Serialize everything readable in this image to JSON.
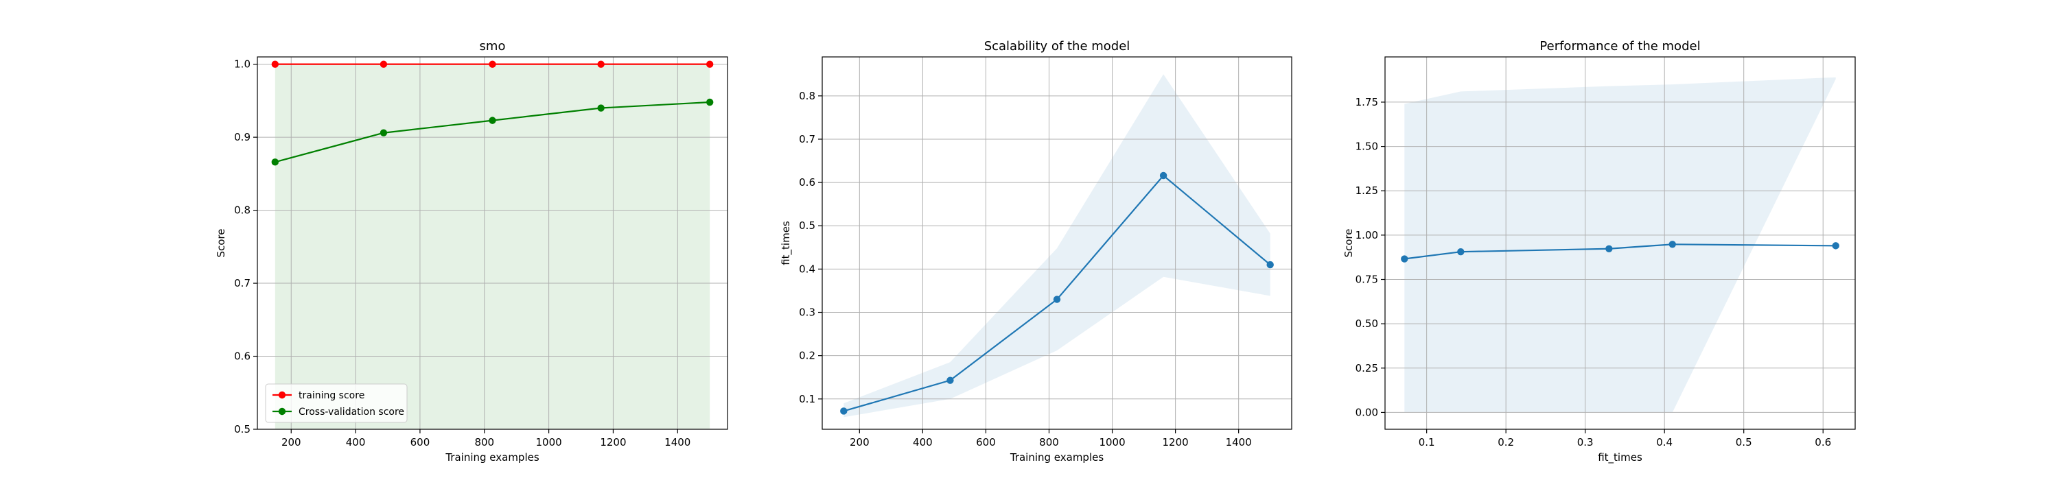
{
  "chart_data": [
    {
      "type": "line",
      "title": "smo",
      "xlabel": "Training examples",
      "ylabel": "Score",
      "xlim": [
        95,
        1555
      ],
      "ylim": [
        0.5,
        1.01
      ],
      "xticks": [
        200,
        400,
        600,
        800,
        1000,
        1200,
        1400
      ],
      "yticks": [
        0.5,
        0.6,
        0.7,
        0.8,
        0.9,
        1.0
      ],
      "grid": true,
      "legend_placement": "lower-left",
      "x": [
        150,
        487,
        825,
        1162,
        1500
      ],
      "series": [
        {
          "name": "training score",
          "color": "#ff0000",
          "values": [
            1.0,
            1.0,
            1.0,
            1.0,
            1.0
          ],
          "band_lower": [
            1.0,
            1.0,
            1.0,
            1.0,
            1.0
          ],
          "band_upper": [
            1.0,
            1.0,
            1.0,
            1.0,
            1.0
          ]
        },
        {
          "name": "Cross-validation score",
          "color": "#008000",
          "values": [
            0.866,
            0.906,
            0.923,
            0.94,
            0.948
          ],
          "band_lower": [
            0.48,
            0.48,
            0.48,
            0.48,
            0.48
          ],
          "band_upper": [
            1.0,
            1.0,
            1.0,
            1.0,
            1.0
          ],
          "band_color": "#008000"
        }
      ]
    },
    {
      "type": "line",
      "title": "Scalability of the model",
      "xlabel": "Training examples",
      "ylabel": "fit_times",
      "xlim": [
        82,
        1568
      ],
      "ylim": [
        0.03,
        0.89
      ],
      "xticks": [
        200,
        400,
        600,
        800,
        1000,
        1200,
        1400
      ],
      "yticks": [
        0.1,
        0.2,
        0.3,
        0.4,
        0.5,
        0.6,
        0.7,
        0.8
      ],
      "grid": true,
      "x": [
        150,
        487,
        825,
        1162,
        1500
      ],
      "series": [
        {
          "color": "#1f77b4",
          "values": [
            0.072,
            0.143,
            0.33,
            0.616,
            0.41
          ],
          "band_lower": [
            0.058,
            0.1,
            0.212,
            0.382,
            0.338
          ],
          "band_upper": [
            0.09,
            0.185,
            0.448,
            0.85,
            0.482
          ],
          "band_color": "#1f77b4"
        }
      ]
    },
    {
      "type": "line",
      "title": "Performance of the model",
      "xlabel": "fit_times",
      "ylabel": "Score",
      "xlim": [
        0.0475,
        0.6405
      ],
      "ylim": [
        -0.095,
        2.005
      ],
      "xticks": [
        0.1,
        0.2,
        0.3,
        0.4,
        0.5,
        0.6
      ],
      "yticks": [
        0.0,
        0.25,
        0.5,
        0.75,
        1.0,
        1.25,
        1.5,
        1.75
      ],
      "grid": true,
      "x": [
        0.072,
        0.143,
        0.33,
        0.41,
        0.616
      ],
      "series": [
        {
          "color": "#1f77b4",
          "values": [
            0.866,
            0.906,
            0.923,
            0.948,
            0.94
          ],
          "band_lower": [
            0.0,
            0.0,
            0.0,
            0.0,
            1.88
          ],
          "band_upper": [
            1.74,
            1.81,
            1.84,
            1.85,
            1.89
          ],
          "band_color": "#1f77b4"
        }
      ]
    }
  ]
}
